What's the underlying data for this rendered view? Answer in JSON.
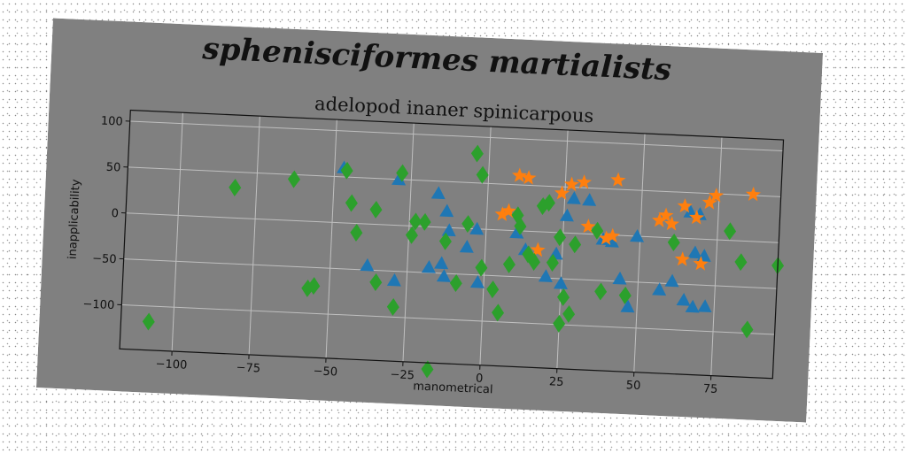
{
  "colors": {
    "background": "#808080",
    "grid": "#bfbfbf",
    "triangle": "#1f77b4",
    "star": "#ff7f0e",
    "diamond": "#2ca02c"
  },
  "chart_data": {
    "type": "scatter",
    "title": "spheniscif​ormes martialists",
    "subtitle": "adelopod inaner spinicarpous",
    "xlabel": "manometrical",
    "ylabel": "inapplicability",
    "xlim": [
      -117,
      95
    ],
    "ylim": [
      -148,
      112
    ],
    "xticks": [
      -100,
      -75,
      -50,
      -25,
      0,
      25,
      50,
      75
    ],
    "yticks": [
      -100,
      -50,
      0,
      50,
      100
    ],
    "grid": true,
    "legend": "none",
    "series": [
      {
        "marker": "triangle",
        "color": "#1f77b4",
        "points": [
          [
            -47,
            60
          ],
          [
            -29,
            50
          ],
          [
            -16,
            37
          ],
          [
            -13,
            18
          ],
          [
            -12,
            -3
          ],
          [
            -6,
            -20
          ],
          [
            -3,
            0
          ],
          [
            -18,
            -44
          ],
          [
            -14,
            -39
          ],
          [
            -13,
            -53
          ],
          [
            -38,
            -45
          ],
          [
            -29,
            -60
          ],
          [
            -2,
            -58
          ],
          [
            10,
            -2
          ],
          [
            13,
            -20
          ],
          [
            20,
            -48
          ],
          [
            23,
            -23
          ],
          [
            25,
            -55
          ],
          [
            26,
            19
          ],
          [
            28,
            38
          ],
          [
            33,
            37
          ],
          [
            38,
            -5
          ],
          [
            41,
            -7
          ],
          [
            49,
            0
          ],
          [
            44,
            -47
          ],
          [
            47,
            -77
          ],
          [
            57,
            -57
          ],
          [
            61,
            -47
          ],
          [
            65,
            -67
          ],
          [
            68,
            -74
          ],
          [
            66,
            29
          ],
          [
            69,
            27
          ],
          [
            68,
            -15
          ],
          [
            71,
            -18
          ],
          [
            72,
            -73
          ]
        ]
      },
      {
        "marker": "star",
        "color": "#ff7f0e",
        "points": [
          [
            10,
            60
          ],
          [
            13,
            58
          ],
          [
            24,
            43
          ],
          [
            27,
            53
          ],
          [
            31,
            56
          ],
          [
            42,
            60
          ],
          [
            5,
            17
          ],
          [
            7,
            21
          ],
          [
            17,
            -20
          ],
          [
            33,
            8
          ],
          [
            39,
            -4
          ],
          [
            41,
            -1
          ],
          [
            58,
            24
          ],
          [
            60,
            15
          ],
          [
            64,
            35
          ],
          [
            68,
            23
          ],
          [
            72,
            40
          ],
          [
            74,
            48
          ],
          [
            86,
            51
          ],
          [
            64,
            -23
          ],
          [
            70,
            -27
          ],
          [
            56,
            18
          ]
        ]
      },
      {
        "marker": "diamond",
        "color": "#2ca02c",
        "points": [
          [
            -108,
            -117
          ],
          [
            -82,
            33
          ],
          [
            -63,
            45
          ],
          [
            -57,
            -73
          ],
          [
            -55,
            -70
          ],
          [
            -46,
            57
          ],
          [
            -44,
            22
          ],
          [
            -42,
            -10
          ],
          [
            -36,
            16
          ],
          [
            -35,
            -63
          ],
          [
            -28,
            57
          ],
          [
            -29,
            -89
          ],
          [
            -24,
            -10
          ],
          [
            -23,
            5
          ],
          [
            -20,
            5
          ],
          [
            -17,
            -155
          ],
          [
            -13,
            -15
          ],
          [
            -9,
            -60
          ],
          [
            -6,
            5
          ],
          [
            -4,
            82
          ],
          [
            -2,
            59
          ],
          [
            -1,
            -42
          ],
          [
            3,
            -65
          ],
          [
            5,
            -90
          ],
          [
            8,
            -37
          ],
          [
            10,
            17
          ],
          [
            11,
            5
          ],
          [
            14,
            -25
          ],
          [
            16,
            -33
          ],
          [
            18,
            28
          ],
          [
            20,
            32
          ],
          [
            22,
            -33
          ],
          [
            24,
            -5
          ],
          [
            25,
            -99
          ],
          [
            26,
            -70
          ],
          [
            28,
            -88
          ],
          [
            29,
            -12
          ],
          [
            36,
            4
          ],
          [
            38,
            -62
          ],
          [
            46,
            -65
          ],
          [
            61,
            -5
          ],
          [
            79,
            10
          ],
          [
            83,
            -23
          ],
          [
            86,
            -96
          ],
          [
            95,
            -25
          ]
        ]
      }
    ]
  }
}
